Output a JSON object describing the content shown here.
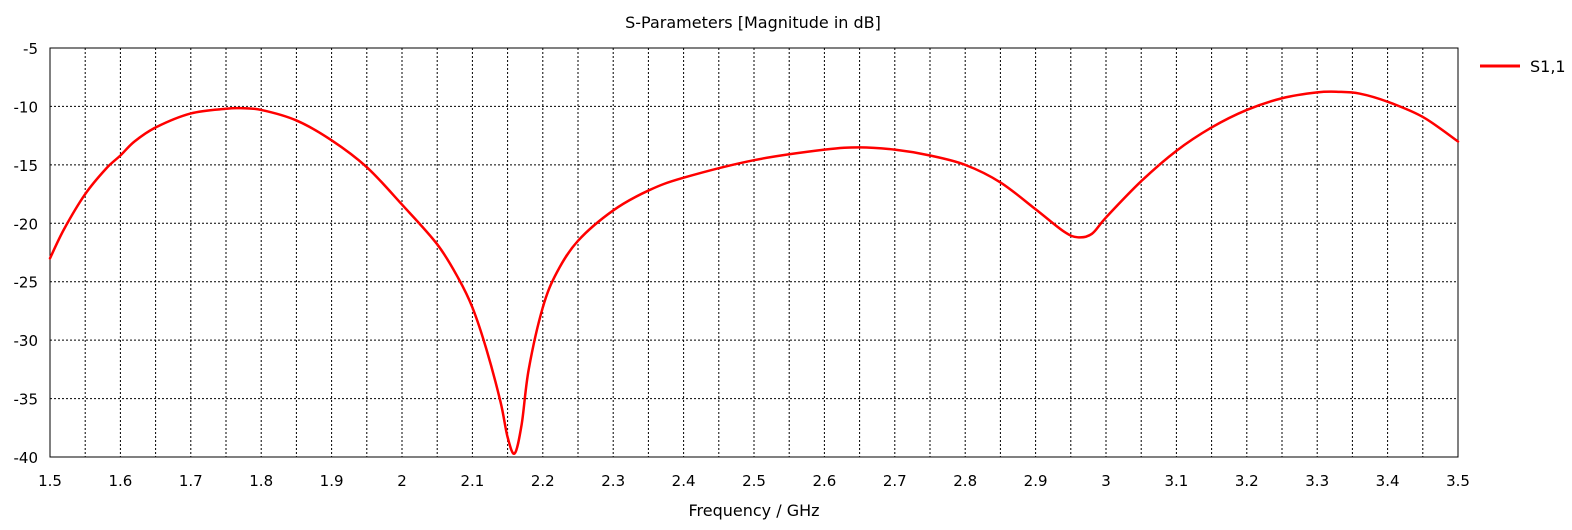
{
  "chart_data": {
    "type": "line",
    "title": "S-Parameters [Magnitude in dB]",
    "xlabel": "Frequency / GHz",
    "ylabel": "",
    "xlim": [
      1.5,
      3.5
    ],
    "ylim": [
      -40,
      -5
    ],
    "xticks": [
      1.5,
      1.6,
      1.7,
      1.8,
      1.9,
      2,
      2.1,
      2.2,
      2.3,
      2.4,
      2.5,
      2.6,
      2.7,
      2.8,
      2.9,
      3,
      3.1,
      3.2,
      3.3,
      3.4,
      3.5
    ],
    "xtick_labels": [
      "1.5",
      "1.6",
      "1.7",
      "1.8",
      "1.9",
      "2",
      "2.1",
      "2.2",
      "2.3",
      "2.4",
      "2.5",
      "2.6",
      "2.7",
      "2.8",
      "2.9",
      "3",
      "3.1",
      "3.2",
      "3.3",
      "3.4",
      "3.5"
    ],
    "yticks": [
      -40,
      -35,
      -30,
      -25,
      -20,
      -15,
      -10,
      -5
    ],
    "ytick_labels": [
      "-40",
      "-35",
      "-30",
      "-25",
      "-20",
      "-15",
      "-10",
      "-5"
    ],
    "grid": true,
    "grid_style": "dotted",
    "legend_position": "right-top",
    "series": [
      {
        "name": "S1,1",
        "color": "#ff0000",
        "x": [
          1.5,
          1.52,
          1.55,
          1.58,
          1.6,
          1.62,
          1.65,
          1.7,
          1.75,
          1.77,
          1.8,
          1.85,
          1.9,
          1.95,
          2.0,
          2.05,
          2.08,
          2.1,
          2.12,
          2.14,
          2.15,
          2.16,
          2.17,
          2.18,
          2.2,
          2.22,
          2.25,
          2.3,
          2.35,
          2.4,
          2.5,
          2.6,
          2.65,
          2.7,
          2.75,
          2.8,
          2.85,
          2.9,
          2.94,
          2.96,
          2.98,
          3.0,
          3.05,
          3.1,
          3.15,
          3.2,
          3.25,
          3.3,
          3.33,
          3.36,
          3.4,
          3.45,
          3.5
        ],
        "y": [
          -23.0,
          -20.5,
          -17.5,
          -15.3,
          -14.2,
          -13.0,
          -11.8,
          -10.6,
          -10.2,
          -10.15,
          -10.3,
          -11.2,
          -12.9,
          -15.2,
          -18.4,
          -21.8,
          -24.7,
          -27.2,
          -30.8,
          -35.3,
          -38.3,
          -39.7,
          -37.2,
          -32.5,
          -27.2,
          -24.2,
          -21.5,
          -18.9,
          -17.2,
          -16.1,
          -14.6,
          -13.7,
          -13.5,
          -13.7,
          -14.2,
          -15.0,
          -16.5,
          -18.8,
          -20.7,
          -21.2,
          -20.9,
          -19.5,
          -16.4,
          -13.8,
          -11.8,
          -10.3,
          -9.3,
          -8.8,
          -8.75,
          -8.9,
          -9.6,
          -10.9,
          -13.0
        ]
      }
    ]
  }
}
